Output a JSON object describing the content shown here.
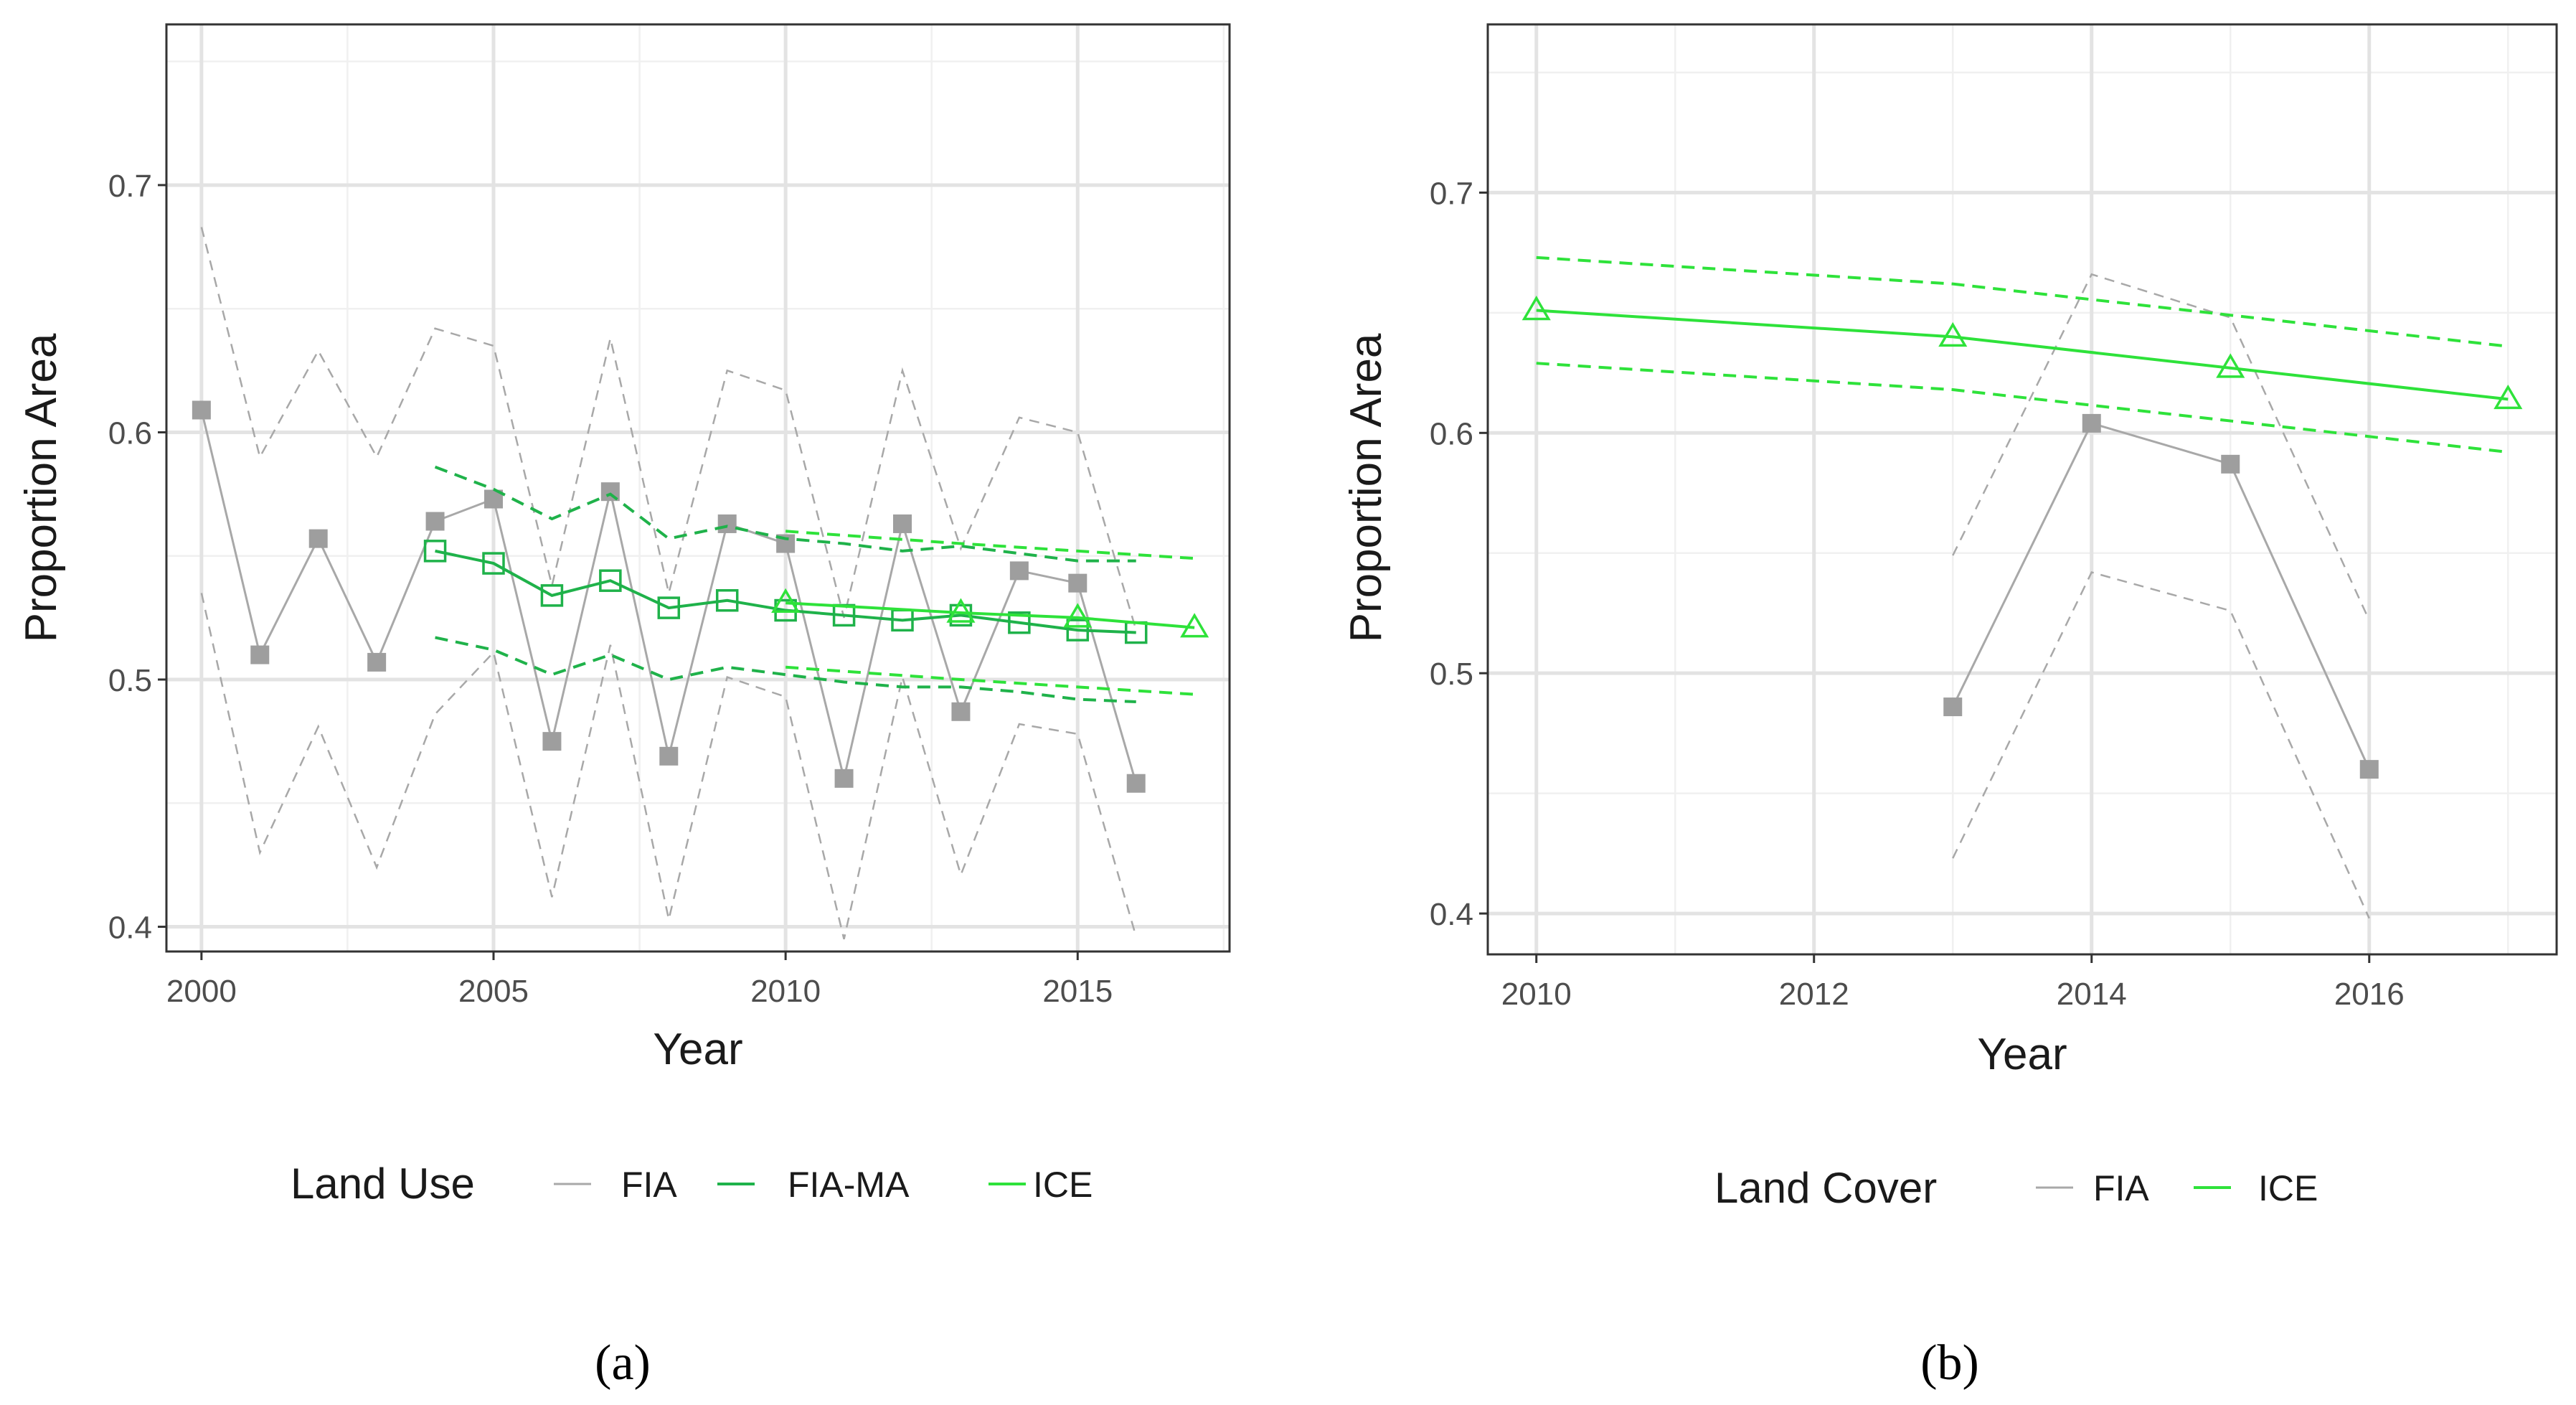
{
  "colors": {
    "fia": "#a8a8a8",
    "fia_marker": "#9e9e9e",
    "fia_ma": "#1fb24a",
    "ice": "#2ee23a",
    "grid_major": "#e3e3e3",
    "grid_minor": "#f0f0f0",
    "border": "#333333"
  },
  "chart_data": [
    {
      "id": "a",
      "type": "line",
      "caption": "(a)",
      "xlabel": "Year",
      "ylabel": "Proportion Area",
      "xlim": [
        1999.4,
        2017.6
      ],
      "ylim": [
        0.39,
        0.765
      ],
      "x_ticks": [
        2000,
        2005,
        2010,
        2015
      ],
      "x_tick_labels": [
        "2000",
        "2005",
        "2010",
        "2015"
      ],
      "x_minor": [
        2002.5,
        2007.5,
        2012.5,
        2017.5
      ],
      "y_ticks": [
        0.4,
        0.5,
        0.6,
        0.7
      ],
      "y_tick_labels": [
        "0.4",
        "0.5",
        "0.6",
        "0.7"
      ],
      "y_minor": [
        0.45,
        0.55,
        0.65,
        0.75
      ],
      "legend": {
        "title": "Land Use",
        "position": "bottom",
        "items": [
          "FIA",
          "FIA-MA",
          "ICE"
        ]
      },
      "series": [
        {
          "name": "FIA",
          "color_key": "fia",
          "marker": "filled-square",
          "x": [
            2000,
            2001,
            2002,
            2003,
            2004,
            2005,
            2006,
            2007,
            2008,
            2009,
            2010,
            2011,
            2012,
            2013,
            2014,
            2015,
            2016
          ],
          "y": [
            0.609,
            0.51,
            0.557,
            0.507,
            0.564,
            0.573,
            0.475,
            0.576,
            0.469,
            0.563,
            0.555,
            0.46,
            0.563,
            0.487,
            0.544,
            0.539,
            0.458
          ],
          "upper": [
            0.683,
            0.59,
            0.633,
            0.59,
            0.642,
            0.635,
            0.538,
            0.638,
            0.535,
            0.625,
            0.617,
            0.525,
            0.625,
            0.553,
            0.606,
            0.6,
            0.52
          ],
          "lower": [
            0.535,
            0.43,
            0.481,
            0.424,
            0.486,
            0.511,
            0.412,
            0.514,
            0.403,
            0.501,
            0.493,
            0.395,
            0.501,
            0.421,
            0.482,
            0.478,
            0.396
          ]
        },
        {
          "name": "FIA-MA",
          "color_key": "fia_ma",
          "marker": "open-square",
          "x": [
            2004,
            2005,
            2006,
            2007,
            2008,
            2009,
            2010,
            2011,
            2012,
            2013,
            2014,
            2015,
            2016
          ],
          "y": [
            0.552,
            0.547,
            0.534,
            0.54,
            0.529,
            0.532,
            0.528,
            0.526,
            0.524,
            0.526,
            0.523,
            0.52,
            0.519
          ],
          "upper": [
            0.586,
            0.577,
            0.565,
            0.575,
            0.557,
            0.562,
            0.557,
            0.555,
            0.552,
            0.554,
            0.551,
            0.548,
            0.548
          ],
          "lower": [
            0.517,
            0.512,
            0.502,
            0.51,
            0.5,
            0.505,
            0.502,
            0.499,
            0.497,
            0.497,
            0.495,
            0.492,
            0.491
          ]
        },
        {
          "name": "ICE",
          "color_key": "ice",
          "marker": "open-triangle",
          "x": [
            2010,
            2013,
            2015,
            2017
          ],
          "y": [
            0.531,
            0.527,
            0.525,
            0.521
          ],
          "upper": [
            0.56,
            0.555,
            0.552,
            0.549
          ],
          "lower": [
            0.505,
            0.5,
            0.497,
            0.494
          ]
        }
      ]
    },
    {
      "id": "b",
      "type": "line",
      "caption": "(b)",
      "xlabel": "Year",
      "ylabel": "Proportion Area",
      "xlim": [
        2009.65,
        2017.35
      ],
      "ylim": [
        0.383,
        0.77
      ],
      "x_ticks": [
        2010,
        2012,
        2014,
        2016
      ],
      "x_tick_labels": [
        "2010",
        "2012",
        "2014",
        "2016"
      ],
      "x_minor": [
        2011,
        2013,
        2015,
        2017
      ],
      "y_ticks": [
        0.4,
        0.5,
        0.6,
        0.7
      ],
      "y_tick_labels": [
        "0.4",
        "0.5",
        "0.6",
        "0.7"
      ],
      "y_minor": [
        0.45,
        0.55,
        0.65,
        0.75
      ],
      "legend": {
        "title": "Land Cover",
        "position": "bottom",
        "items": [
          "FIA",
          "ICE"
        ]
      },
      "series": [
        {
          "name": "FIA",
          "color_key": "fia",
          "marker": "filled-square",
          "x": [
            2013,
            2014,
            2015,
            2016
          ],
          "y": [
            0.486,
            0.604,
            0.587,
            0.46
          ],
          "upper": [
            0.549,
            0.666,
            0.648,
            0.522
          ],
          "lower": [
            0.423,
            0.542,
            0.526,
            0.398
          ]
        },
        {
          "name": "ICE",
          "color_key": "ice",
          "marker": "open-triangle",
          "x": [
            2010,
            2013,
            2015,
            2017
          ],
          "y": [
            0.651,
            0.64,
            0.627,
            0.614
          ],
          "upper": [
            0.673,
            0.662,
            0.649,
            0.636
          ],
          "lower": [
            0.629,
            0.618,
            0.605,
            0.592
          ]
        }
      ]
    }
  ]
}
